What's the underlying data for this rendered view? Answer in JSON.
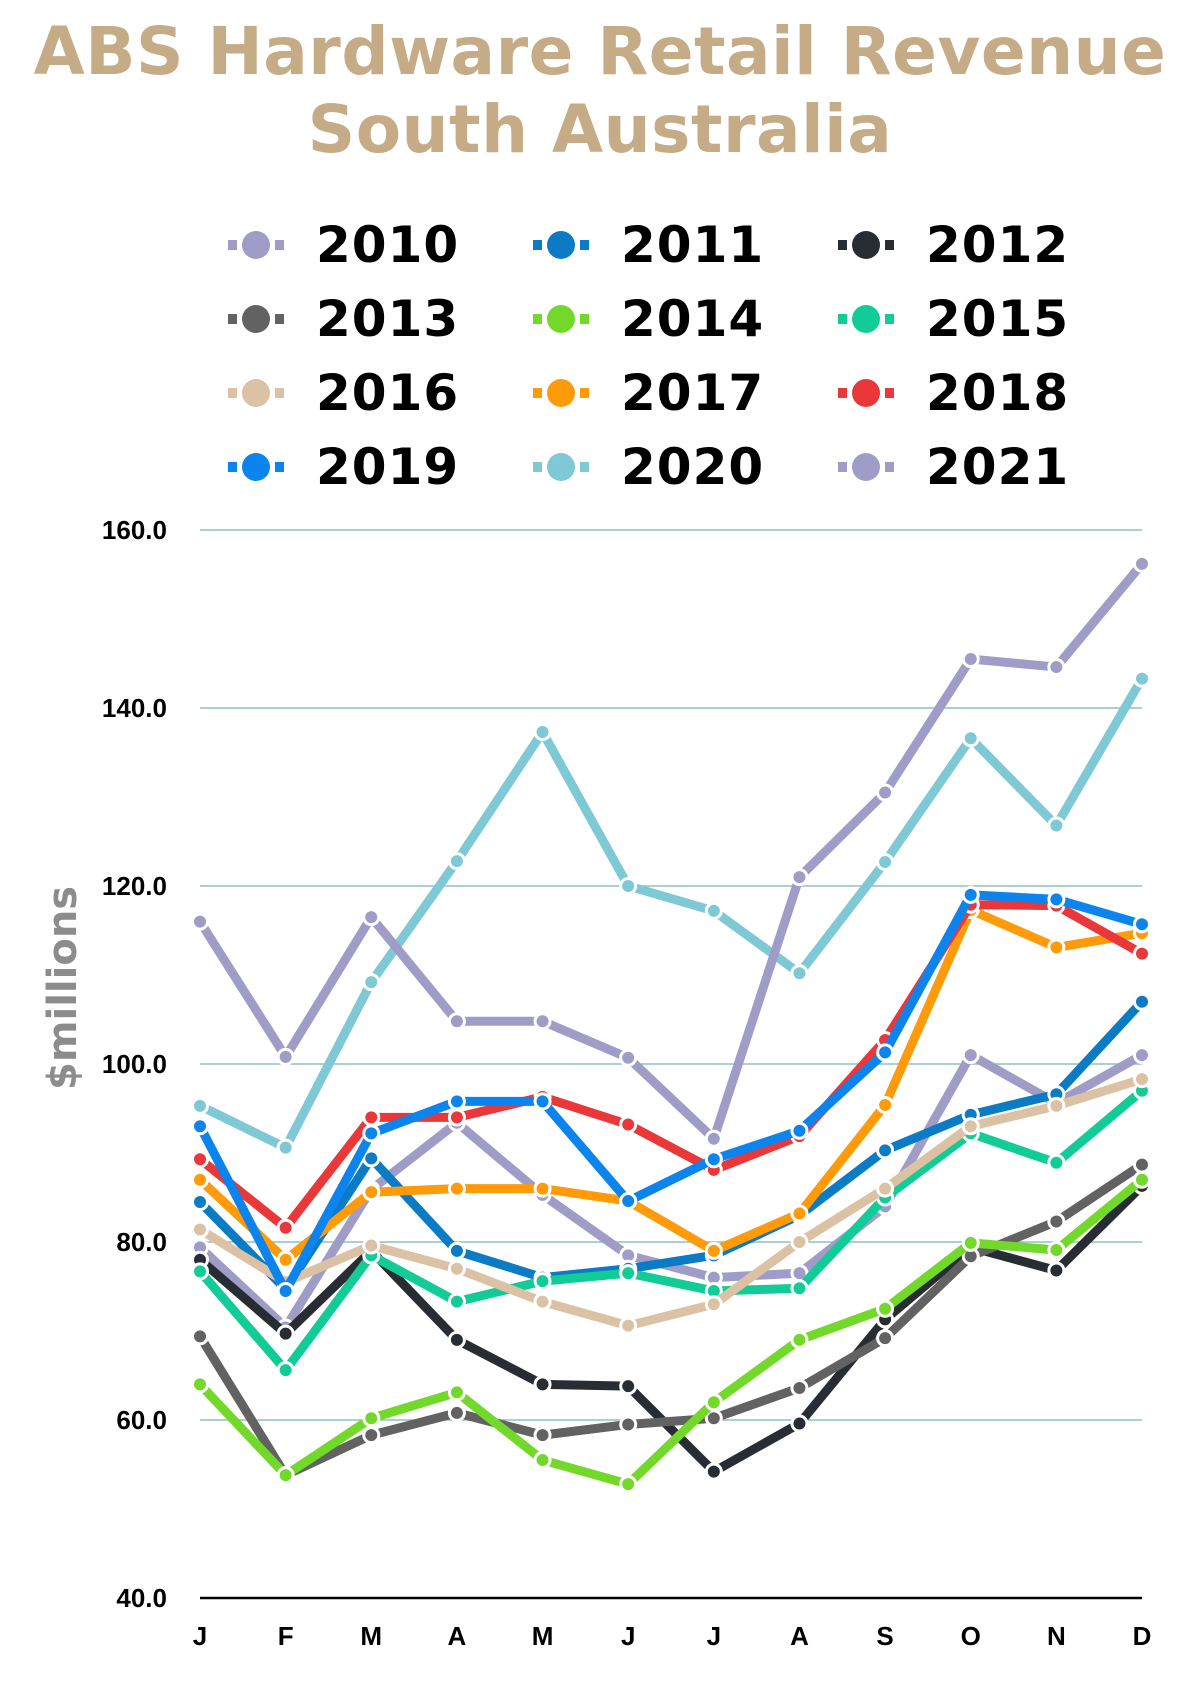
{
  "title_line1": "ABS Hardware Retail Revenue",
  "title_line2": "South Australia",
  "chart_data": {
    "type": "line",
    "title": "ABS Hardware Retail Revenue South Australia",
    "xlabel": "",
    "ylabel": "$millions",
    "categories": [
      "J",
      "F",
      "M",
      "A",
      "M",
      "J",
      "J",
      "A",
      "S",
      "O",
      "N",
      "D"
    ],
    "ylim": [
      40,
      160
    ],
    "yticks": [
      "40.0",
      "60.0",
      "80.0",
      "100.0",
      "120.0",
      "140.0",
      "160.0"
    ],
    "ytick_values": [
      40,
      60,
      80,
      100,
      120,
      140,
      160
    ],
    "grid": true,
    "legend_position": "top",
    "series": [
      {
        "name": "2010",
        "color": "#a09cc8",
        "values": [
          79.4,
          70.4,
          85.9,
          93.4,
          85.3,
          78.5,
          76.0,
          76.5,
          84.0,
          101.0,
          95.6,
          101.0
        ]
      },
      {
        "name": "2011",
        "color": "#0a7bc4",
        "values": [
          84.5,
          74.7,
          89.4,
          79.0,
          76.0,
          77.0,
          78.5,
          83.0,
          90.3,
          94.3,
          96.6,
          107.0
        ]
      },
      {
        "name": "2012",
        "color": "#282c33",
        "values": [
          78.0,
          69.7,
          79.0,
          69.0,
          64.0,
          63.8,
          54.2,
          59.6,
          71.3,
          79.4,
          76.8,
          86.3
        ]
      },
      {
        "name": "2013",
        "color": "#626262",
        "values": [
          69.4,
          53.8,
          58.3,
          60.8,
          58.3,
          59.5,
          60.2,
          63.6,
          69.2,
          78.4,
          82.3,
          88.7
        ]
      },
      {
        "name": "2014",
        "color": "#72d92a",
        "values": [
          64.0,
          53.8,
          60.2,
          63.1,
          55.5,
          52.8,
          62.0,
          69.0,
          72.5,
          79.9,
          79.1,
          87.0
        ]
      },
      {
        "name": "2015",
        "color": "#12cc97",
        "values": [
          76.7,
          65.6,
          78.5,
          73.3,
          75.6,
          76.5,
          74.5,
          74.8,
          85.0,
          92.2,
          88.9,
          97.0
        ]
      },
      {
        "name": "2016",
        "color": "#dcc2a4",
        "values": [
          81.4,
          75.5,
          79.6,
          77.0,
          73.3,
          70.6,
          73.0,
          80.0,
          86.0,
          93.0,
          95.3,
          98.3
        ]
      },
      {
        "name": "2017",
        "color": "#ff9a0a",
        "values": [
          87.0,
          78.0,
          85.6,
          86.0,
          86.0,
          84.6,
          79.0,
          83.2,
          95.4,
          117.3,
          113.1,
          114.7
        ]
      },
      {
        "name": "2018",
        "color": "#ea373a",
        "values": [
          89.3,
          81.6,
          94.0,
          94.0,
          96.3,
          93.2,
          88.1,
          91.9,
          102.7,
          117.9,
          117.8,
          112.4
        ]
      },
      {
        "name": "2019",
        "color": "#0b84ee",
        "values": [
          93.0,
          74.5,
          92.2,
          95.8,
          95.8,
          84.6,
          89.3,
          92.5,
          101.3,
          119.0,
          118.5,
          115.7
        ]
      },
      {
        "name": "2020",
        "color": "#7fc8d6",
        "values": [
          95.3,
          90.6,
          109.2,
          122.8,
          137.3,
          120.0,
          117.2,
          110.2,
          122.7,
          136.6,
          126.8,
          143.3
        ]
      },
      {
        "name": "2021",
        "color": "#a09cc8",
        "values": [
          116.0,
          100.8,
          116.5,
          104.8,
          104.8,
          100.7,
          91.6,
          121.0,
          130.5,
          145.5,
          144.6,
          156.2
        ]
      }
    ]
  },
  "colors": {
    "title": "#c5ab86",
    "gridline": "#8fbfc4",
    "axis": "#000000",
    "ylabel": "#8c8c8c"
  }
}
